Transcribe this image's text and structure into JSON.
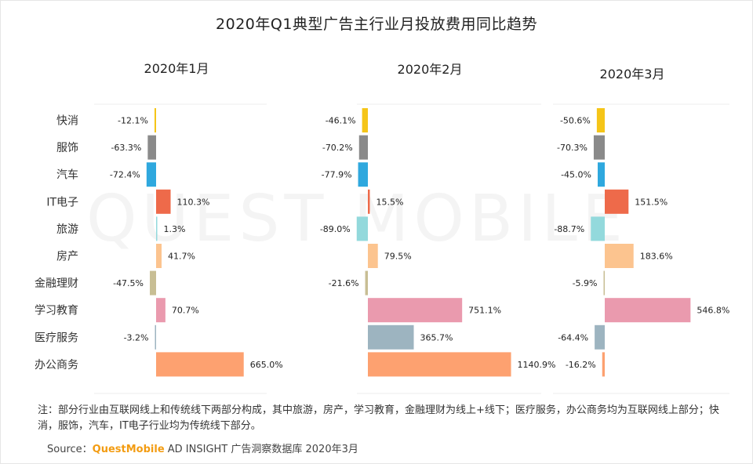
{
  "title": "2020年Q1典型广告主行业月投放费用同比趋势",
  "watermark": "QUEST MOBILE",
  "note": "注：部分行业由互联网线上和传统线下两部分构成，其中旅游，房产，学习教育，金融理财为线上+线下；医疗服务，办公商务均为互联网线上部分；快消，服饰，汽车，IT电子行业均为传统线下部分。",
  "source": {
    "prefix": "Source：",
    "brand": "QuestMobile",
    "suffix": " AD INSIGHT 广告洞察数据库 2020年3月"
  },
  "chart_data": {
    "type": "bar",
    "orientation": "horizontal",
    "unit": "%",
    "categories": [
      "快消",
      "服饰",
      "汽车",
      "IT电子",
      "旅游",
      "房产",
      "金融理财",
      "学习教育",
      "医疗服务",
      "办公商务"
    ],
    "colors": [
      "#F5C518",
      "#8A8A8A",
      "#2FA8DE",
      "#EE6A4A",
      "#93D9DC",
      "#FCC48F",
      "#C8BE94",
      "#EA9AAE",
      "#9DB4C0",
      "#FDA170"
    ],
    "series": [
      {
        "name": "2020年1月",
        "values": [
          -12.1,
          -63.3,
          -72.4,
          110.3,
          1.3,
          41.7,
          -47.5,
          70.7,
          -3.2,
          665.0
        ]
      },
      {
        "name": "2020年2月",
        "values": [
          -46.1,
          -70.2,
          -77.9,
          15.5,
          -89.0,
          79.5,
          -21.6,
          751.1,
          365.7,
          1140.9
        ]
      },
      {
        "name": "2020年3月",
        "values": [
          -50.6,
          -70.3,
          -45.0,
          151.5,
          -88.7,
          183.6,
          -5.9,
          546.8,
          -64.4,
          -16.2
        ]
      }
    ]
  }
}
